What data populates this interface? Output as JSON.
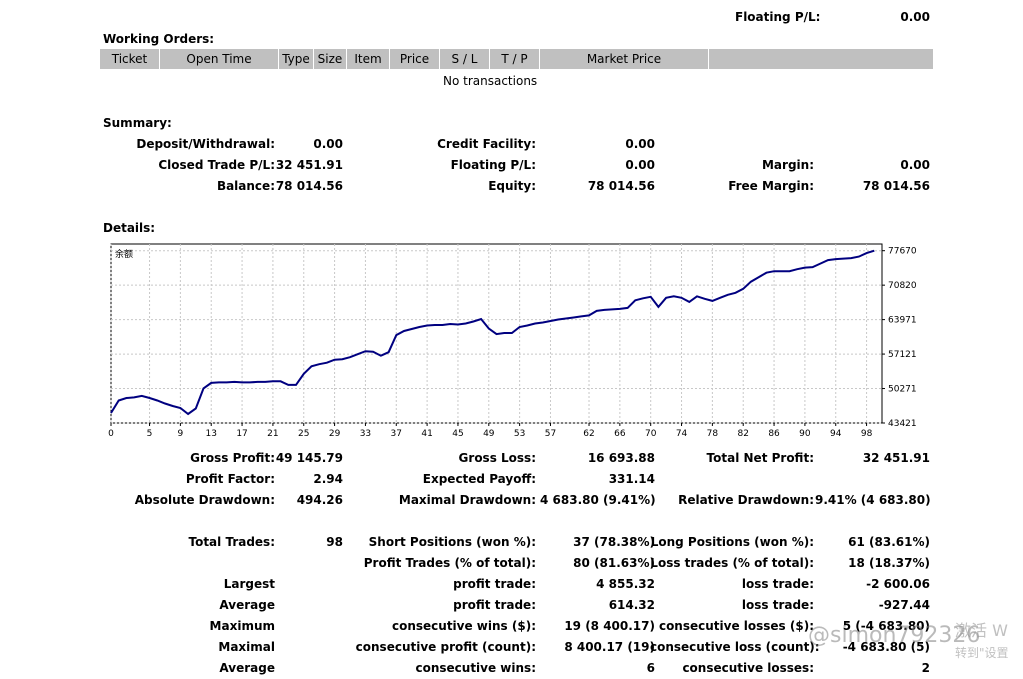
{
  "top": {
    "floating_label": "Floating P/L:",
    "floating_value": "0.00"
  },
  "working_orders": {
    "title": "Working Orders:",
    "columns": [
      "Ticket",
      "Open Time",
      "Type",
      "Size",
      "Item",
      "Price",
      "S / L",
      "T / P",
      "Market Price",
      ""
    ],
    "empty": "No transactions"
  },
  "summary": {
    "title": "Summary:",
    "deposit_label": "Deposit/Withdrawal:",
    "deposit_value": "0.00",
    "credit_label": "Credit Facility:",
    "credit_value": "0.00",
    "closed_label": "Closed Trade P/L:",
    "closed_value": "32 451.91",
    "floating_label": "Floating P/L:",
    "floating_value": "0.00",
    "margin_label": "Margin:",
    "margin_value": "0.00",
    "balance_label": "Balance:",
    "balance_value": "78 014.56",
    "equity_label": "Equity:",
    "equity_value": "78 014.56",
    "free_margin_label": "Free Margin:",
    "free_margin_value": "78 014.56"
  },
  "details": {
    "title": "Details:"
  },
  "chart_data": {
    "type": "line",
    "series_label": "余额",
    "ylim": [
      43421,
      79000
    ],
    "xlim": [
      0,
      100
    ],
    "y_ticks": [
      "77670",
      "70820",
      "63971",
      "57121",
      "50271",
      "43421"
    ],
    "y_tick_values": [
      77670,
      70820,
      63971,
      57121,
      50271,
      43421
    ],
    "x_ticks": [
      "0",
      "5",
      "9",
      "13",
      "17",
      "21",
      "25",
      "29",
      "33",
      "37",
      "41",
      "45",
      "49",
      "53",
      "57",
      "62",
      "66",
      "70",
      "74",
      "78",
      "82",
      "86",
      "90",
      "94",
      "98"
    ],
    "x_tick_values": [
      0,
      5,
      9,
      13,
      17,
      21,
      25,
      29,
      33,
      37,
      41,
      45,
      49,
      53,
      57,
      62,
      66,
      70,
      74,
      78,
      82,
      86,
      90,
      94,
      98
    ],
    "grid": true,
    "x": [
      0,
      1,
      2,
      3,
      4,
      5,
      6,
      7,
      8,
      9,
      10,
      11,
      12,
      13,
      14,
      15,
      16,
      17,
      18,
      19,
      20,
      21,
      22,
      23,
      24,
      25,
      26,
      27,
      28,
      29,
      30,
      31,
      32,
      33,
      34,
      35,
      36,
      37,
      38,
      39,
      40,
      41,
      42,
      43,
      44,
      45,
      46,
      47,
      48,
      49,
      50,
      51,
      52,
      53,
      54,
      55,
      56,
      57,
      58,
      59,
      60,
      61,
      62,
      63,
      64,
      65,
      66,
      67,
      68,
      69,
      70,
      71,
      72,
      73,
      74,
      75,
      76,
      77,
      78,
      79,
      80,
      81,
      82,
      83,
      84,
      85,
      86,
      87,
      88,
      89,
      90,
      91,
      92,
      93,
      94,
      95,
      96,
      97,
      98,
      99
    ],
    "y": [
      45400,
      47900,
      48400,
      48500,
      48800,
      48400,
      47900,
      47300,
      46800,
      46400,
      45200,
      46300,
      50300,
      51400,
      51500,
      51500,
      51600,
      51500,
      51500,
      51600,
      51600,
      51700,
      51700,
      51000,
      51000,
      53200,
      54700,
      55100,
      55400,
      56000,
      56100,
      56500,
      57100,
      57700,
      57600,
      56800,
      57500,
      60900,
      61700,
      62100,
      62500,
      62800,
      62900,
      62900,
      63100,
      63000,
      63200,
      63600,
      64100,
      62200,
      61100,
      61300,
      61300,
      62500,
      62800,
      63200,
      63400,
      63700,
      64000,
      64200,
      64400,
      64600,
      64800,
      65700,
      65900,
      66000,
      66100,
      66300,
      67800,
      68200,
      68500,
      66500,
      68300,
      68600,
      68300,
      67500,
      68600,
      68100,
      67700,
      68300,
      68900,
      69300,
      70100,
      71500,
      72400,
      73300,
      73600,
      73600,
      73600,
      74000,
      74300,
      74400,
      75100,
      75800,
      76000,
      76100,
      76200,
      76500,
      77200,
      77670
    ]
  },
  "stats": {
    "gross_profit_label": "Gross Profit:",
    "gross_profit_value": "49 145.79",
    "gross_loss_label": "Gross Loss:",
    "gross_loss_value": "16 693.88",
    "total_net_label": "Total Net Profit:",
    "total_net_value": "32 451.91",
    "profit_factor_label": "Profit Factor:",
    "profit_factor_value": "2.94",
    "expected_payoff_label": "Expected Payoff:",
    "expected_payoff_value": "331.14",
    "abs_dd_label": "Absolute Drawdown:",
    "abs_dd_value": "494.26",
    "max_dd_label": "Maximal Drawdown:",
    "max_dd_value": "4 683.80 (9.41%)",
    "rel_dd_label": "Relative Drawdown:",
    "rel_dd_value": "9.41% (4 683.80)",
    "total_trades_label": "Total Trades:",
    "total_trades_value": "98",
    "short_label": "Short Positions (won %):",
    "short_value": "37 (78.38%)",
    "long_label": "Long Positions (won %):",
    "long_value": "61 (83.61%)",
    "profit_trades_label": "Profit Trades (% of total):",
    "profit_trades_value": "80 (81.63%)",
    "loss_trades_label": "Loss trades (% of total):",
    "loss_trades_value": "18 (18.37%)",
    "largest_label": "Largest",
    "largest_profit_label": "profit trade:",
    "largest_profit_value": "4 855.32",
    "largest_loss_label": "loss trade:",
    "largest_loss_value": "-2 600.06",
    "average_label": "Average",
    "avg_profit_label": "profit trade:",
    "avg_profit_value": "614.32",
    "avg_loss_label": "loss trade:",
    "avg_loss_value": "-927.44",
    "maximum_label": "Maximum",
    "max_cons_wins_label": "consecutive wins ($):",
    "max_cons_wins_value": "19 (8 400.17)",
    "max_cons_losses_label": "consecutive losses ($):",
    "max_cons_losses_value": "5 (-4 683.80)",
    "maximal_label": "Maximal",
    "maximal_cons_profit_label": "consecutive profit (count):",
    "maximal_cons_profit_value": "8 400.17 (19)",
    "maximal_cons_loss_label": "consecutive loss (count):",
    "maximal_cons_loss_value": "-4 683.80 (5)",
    "average2_label": "Average",
    "avg_cons_wins_label": "consecutive wins:",
    "avg_cons_wins_value": "6",
    "avg_cons_losses_label": "consecutive losses:",
    "avg_cons_losses_value": "2"
  },
  "watermark": {
    "text": "@simon792326",
    "overlay_line1": "激活 W",
    "overlay_line2": "转到\"设置"
  }
}
